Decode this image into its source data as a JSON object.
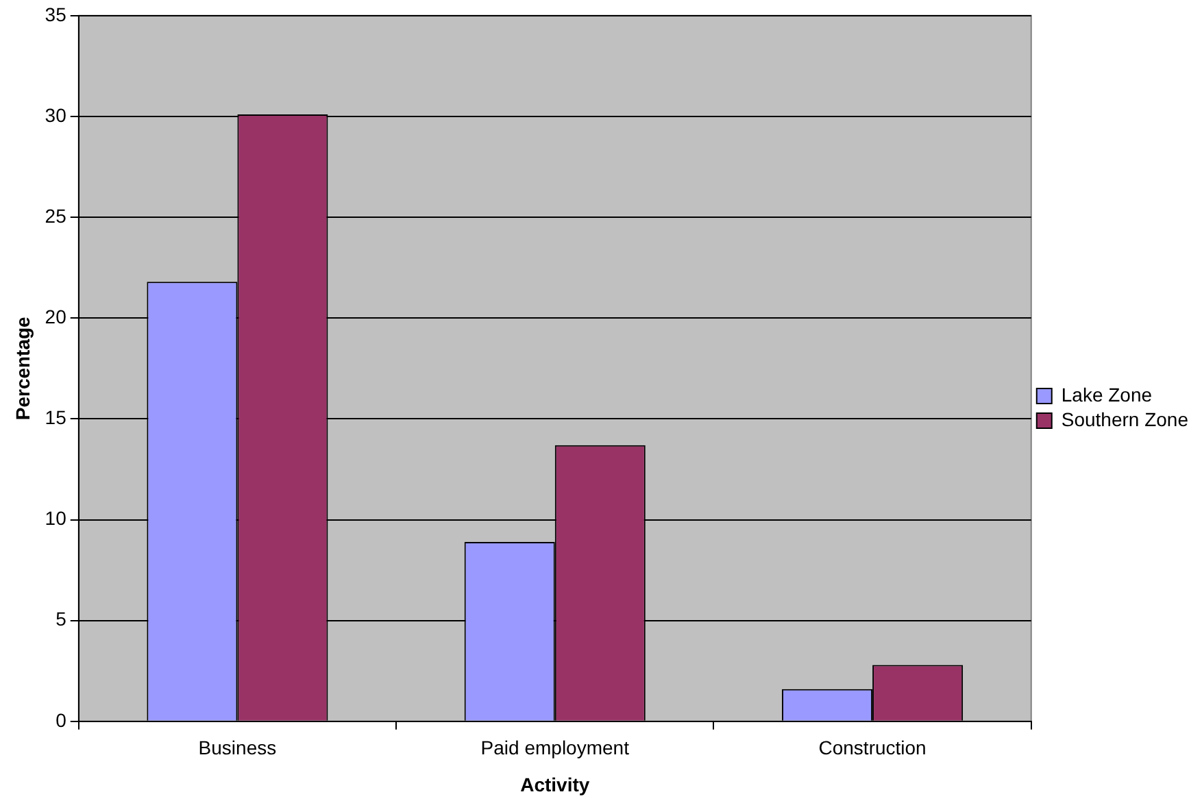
{
  "chart_data": {
    "type": "bar",
    "xlabel": "Activity",
    "ylabel": "Percentage",
    "categories": [
      "Business",
      "Paid employment",
      "Construction"
    ],
    "series": [
      {
        "name": "Lake Zone",
        "color": "#9999ff",
        "values": [
          21.8,
          8.9,
          1.6
        ]
      },
      {
        "name": "Southern Zone",
        "color": "#993366",
        "values": [
          30.1,
          13.7,
          2.8
        ]
      }
    ],
    "ylim": [
      0,
      35
    ],
    "yticks": [
      0,
      5,
      10,
      15,
      20,
      25,
      30,
      35
    ],
    "grid": "y",
    "legend": "right"
  }
}
